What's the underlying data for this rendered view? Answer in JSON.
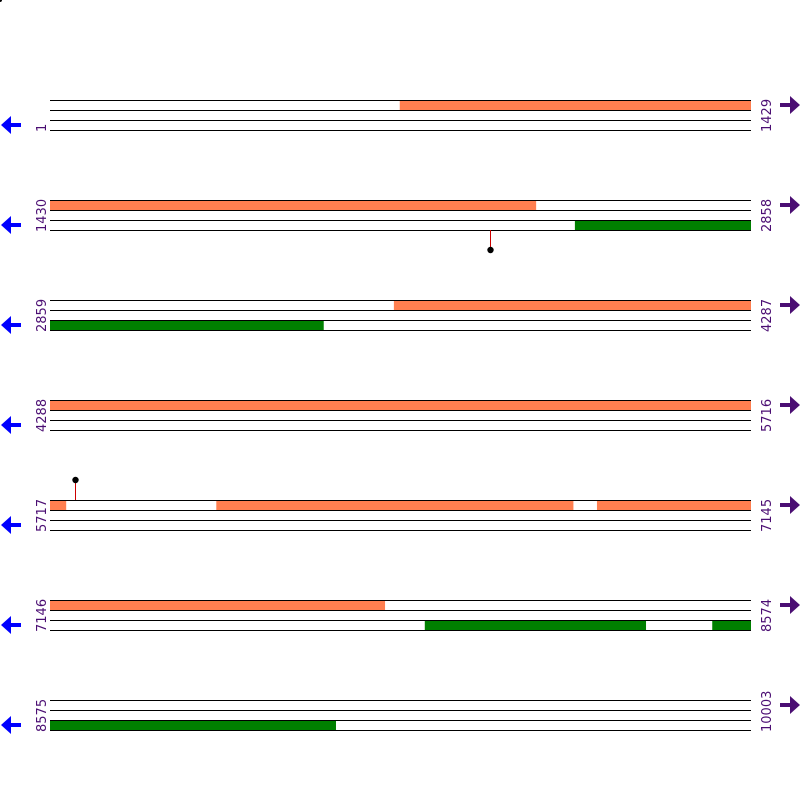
{
  "map": {
    "total_length": 10003,
    "row_length": 1429,
    "colors": {
      "forward_feature": "#ff7f50",
      "reverse_feature": "#008000",
      "track_line": "#000000",
      "marker_stem": "#cc0000",
      "marker_head": "#000000",
      "forward_arrow": "#4b0e73",
      "reverse_arrow": "#0000ff",
      "label": "#4b0e73"
    },
    "rows": [
      {
        "start_label": "1",
        "end_label": "1429",
        "start": 1,
        "end": 1429,
        "forward": [
          [
            714,
            1429
          ]
        ],
        "reverse": [],
        "markers": []
      },
      {
        "start_label": "1430",
        "end_label": "2858",
        "start": 1430,
        "end": 2858,
        "forward": [
          [
            1430,
            2420
          ]
        ],
        "reverse": [
          [
            2500,
            2858
          ]
        ],
        "markers": [
          {
            "position": 2327,
            "strand": "reverse"
          }
        ]
      },
      {
        "start_label": "2859",
        "end_label": "4287",
        "start": 2859,
        "end": 4287,
        "forward": [
          [
            3560,
            4287
          ]
        ],
        "reverse": [
          [
            2859,
            3416
          ]
        ],
        "markers": []
      },
      {
        "start_label": "4288",
        "end_label": "5716",
        "start": 4288,
        "end": 5716,
        "forward": [
          [
            4288,
            5716
          ]
        ],
        "reverse": [],
        "markers": []
      },
      {
        "start_label": "5717",
        "end_label": "7145",
        "start": 5717,
        "end": 7145,
        "forward": [
          [
            5717,
            5749
          ],
          [
            6056,
            6783
          ],
          [
            6832,
            7145
          ]
        ],
        "reverse": [],
        "markers": [
          {
            "position": 5768,
            "strand": "forward"
          }
        ]
      },
      {
        "start_label": "7146",
        "end_label": "8574",
        "start": 7146,
        "end": 8574,
        "forward": [
          [
            7146,
            7828
          ]
        ],
        "reverse": [
          [
            7910,
            8360
          ],
          [
            8496,
            8574
          ]
        ],
        "markers": []
      },
      {
        "start_label": "8575",
        "end_label": "10003",
        "start": 8575,
        "end": 10003,
        "forward": [],
        "reverse": [
          [
            8575,
            9157
          ]
        ],
        "markers": []
      }
    ]
  }
}
